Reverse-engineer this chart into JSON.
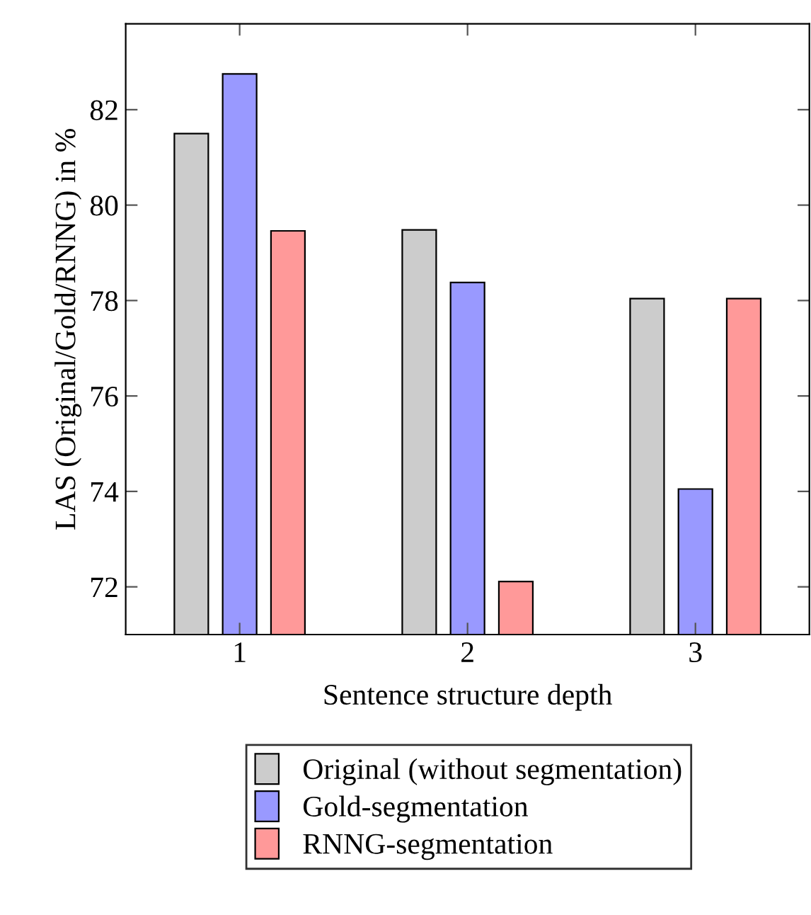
{
  "chart_data": {
    "type": "bar",
    "xlabel": "Sentence structure depth",
    "ylabel": "LAS (Original/Gold/RNNG) in %",
    "x": [
      1,
      2,
      3
    ],
    "xlim": [
      0.5,
      3.5
    ],
    "xticks": [
      1,
      2,
      3
    ],
    "ylim": [
      71,
      83.8
    ],
    "yticks": [
      72,
      74,
      76,
      78,
      80,
      82
    ],
    "series": [
      {
        "name": "Original (without segmentation)",
        "color": "#cccccc",
        "values": [
          81.5,
          79.48,
          78.04
        ]
      },
      {
        "name": "Gold-segmentation",
        "color": "#9999ff",
        "values": [
          82.75,
          78.38,
          74.05
        ]
      },
      {
        "name": "RNNG-segmentation",
        "color": "#ff9999",
        "values": [
          79.46,
          72.11,
          78.04
        ]
      }
    ],
    "legend": "bottom",
    "grid": false
  }
}
